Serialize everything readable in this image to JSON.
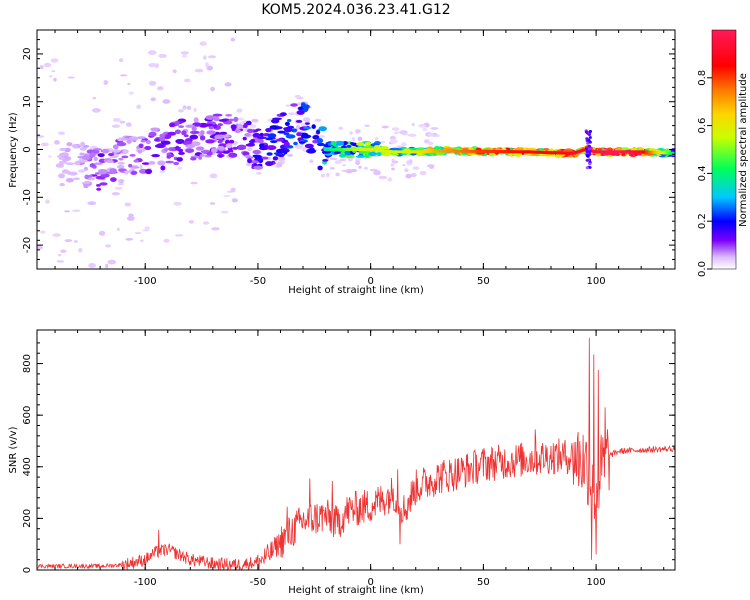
{
  "title": "KOM5.2024.036.23.41.G12",
  "chart_data": [
    {
      "type": "heatmap",
      "xlabel": "Height of straight line (km)",
      "ylabel": "Frequency (Hz)",
      "xlim": [
        -148,
        135
      ],
      "ylim": [
        -25,
        25
      ],
      "xticks": [
        -100,
        -50,
        0,
        50,
        100
      ],
      "yticks": [
        -20,
        -10,
        0,
        10,
        20
      ],
      "colorbar": {
        "label": "Normalized spectral amplitude",
        "range": [
          0.0,
          1.0
        ],
        "ticks": [
          0.0,
          0.2,
          0.4,
          0.6,
          0.8
        ],
        "colors": [
          "#ffffff",
          "#ddbbff",
          "#7a00ff",
          "#0000ff",
          "#00c8ff",
          "#00ff5a",
          "#c8ff00",
          "#ffd400",
          "#ff7800",
          "#ff0000",
          "#ff1a5a"
        ]
      },
      "ridge": {
        "x": [
          -130,
          -120,
          -110,
          -100,
          -90,
          -80,
          -70,
          -60,
          -50,
          -45,
          -40,
          -35,
          -30,
          -25,
          -20,
          -10,
          0,
          10,
          20,
          30,
          50,
          70,
          90,
          95,
          100,
          110,
          120,
          135
        ],
        "frequency": [
          -3,
          -4,
          -2,
          -1,
          1,
          2,
          3,
          3,
          0,
          0,
          3,
          5,
          6,
          1,
          0,
          0,
          0,
          -0.5,
          -0.5,
          -0.3,
          -0.4,
          -0.5,
          -0.8,
          0,
          -0.5,
          -0.5,
          -0.5,
          -0.8
        ],
        "amplitude": [
          0.1,
          0.2,
          0.15,
          0.18,
          0.2,
          0.2,
          0.2,
          0.18,
          0.25,
          0.3,
          0.3,
          0.3,
          0.35,
          0.3,
          0.4,
          0.5,
          0.6,
          0.55,
          0.6,
          0.7,
          0.8,
          0.85,
          0.9,
          0.9,
          0.92,
          0.95,
          0.9,
          0.4
        ]
      }
    },
    {
      "type": "line",
      "xlabel": "Height of straight line (km)",
      "ylabel": "SNR (v/v)",
      "xlim": [
        -148,
        135
      ],
      "ylim": [
        0,
        930
      ],
      "xticks": [
        -100,
        -50,
        0,
        50,
        100
      ],
      "yticks": [
        0,
        200,
        400,
        600,
        800
      ],
      "line_color": "#ee3333",
      "series": [
        {
          "x": [
            -148,
            -140,
            -130,
            -120,
            -110,
            -100,
            -95,
            -90,
            -85,
            -80,
            -70,
            -60,
            -50,
            -45,
            -40,
            -35,
            -30,
            -25,
            -20,
            -15,
            -10,
            -5,
            0,
            5,
            10,
            15,
            20,
            30,
            40,
            50,
            60,
            70,
            80,
            90,
            95,
            98,
            100,
            102,
            105,
            110,
            120,
            135
          ],
          "y": [
            15,
            15,
            15,
            15,
            20,
            40,
            70,
            80,
            60,
            40,
            25,
            20,
            30,
            60,
            110,
            150,
            190,
            200,
            210,
            180,
            230,
            240,
            250,
            270,
            300,
            230,
            320,
            360,
            380,
            410,
            420,
            430,
            440,
            440,
            420,
            360,
            300,
            380,
            440,
            460,
            465,
            470
          ]
        }
      ],
      "peaks": {
        "x": [
          -94,
          -37,
          -27,
          -17,
          12,
          73,
          97,
          99,
          101,
          104
        ],
        "y": [
          155,
          245,
          355,
          345,
          390,
          545,
          900,
          835,
          775,
          630
        ]
      },
      "troughs": {
        "x": [
          13,
          98,
          100
        ],
        "y": [
          100,
          40,
          60
        ]
      }
    }
  ]
}
